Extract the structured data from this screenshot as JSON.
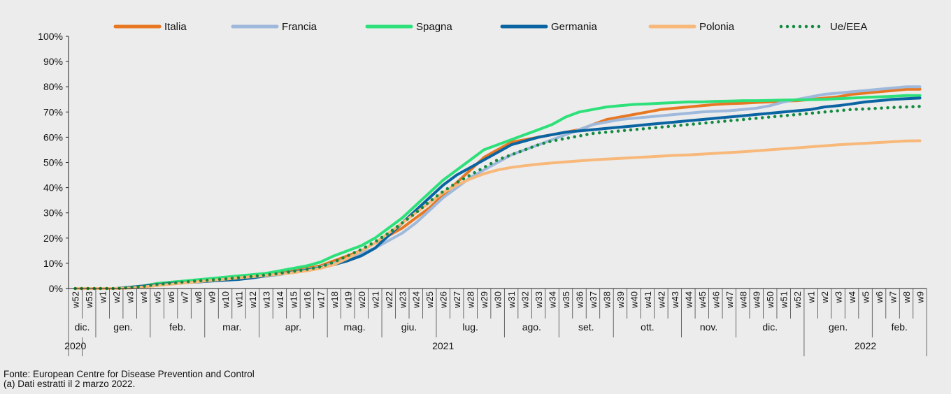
{
  "chart_data": {
    "type": "line",
    "ylim": [
      0,
      100
    ],
    "y_ticks": [
      "0%",
      "10%",
      "20%",
      "30%",
      "40%",
      "50%",
      "60%",
      "70%",
      "80%",
      "90%",
      "100%"
    ],
    "grid": false,
    "legend_position": "top",
    "x_labels": [
      "w52",
      "w53",
      "w1",
      "w2",
      "w3",
      "w4",
      "w5",
      "w6",
      "w7",
      "w8",
      "w9",
      "w10",
      "w11",
      "w12",
      "w13",
      "w14",
      "w15",
      "w16",
      "w17",
      "w18",
      "w19",
      "w20",
      "w21",
      "w22",
      "w23",
      "w24",
      "w25",
      "w26",
      "w27",
      "w28",
      "w29",
      "w30",
      "w31",
      "w32",
      "w33",
      "w34",
      "w35",
      "w36",
      "w37",
      "w38",
      "w39",
      "w40",
      "w41",
      "w42",
      "w43",
      "w44",
      "w45",
      "w46",
      "w47",
      "w48",
      "w49",
      "w50",
      "w51",
      "w52",
      "w1",
      "w2",
      "w3",
      "w4",
      "w5",
      "w6",
      "w7",
      "w8",
      "w9"
    ],
    "months": [
      {
        "label": "dic.",
        "start": 0,
        "end": 1
      },
      {
        "label": "gen.",
        "start": 2,
        "end": 5
      },
      {
        "label": "feb.",
        "start": 6,
        "end": 9
      },
      {
        "label": "mar.",
        "start": 10,
        "end": 13
      },
      {
        "label": "apr.",
        "start": 14,
        "end": 18
      },
      {
        "label": "mag.",
        "start": 19,
        "end": 22
      },
      {
        "label": "giu.",
        "start": 23,
        "end": 26
      },
      {
        "label": "lug.",
        "start": 27,
        "end": 31
      },
      {
        "label": "ago.",
        "start": 32,
        "end": 35
      },
      {
        "label": "set.",
        "start": 36,
        "end": 39
      },
      {
        "label": "ott.",
        "start": 40,
        "end": 44
      },
      {
        "label": "nov.",
        "start": 45,
        "end": 48
      },
      {
        "label": "dic.",
        "start": 49,
        "end": 53
      },
      {
        "label": "gen.",
        "start": 54,
        "end": 58
      },
      {
        "label": "feb.",
        "start": 59,
        "end": 62
      }
    ],
    "years": [
      {
        "label": "2020",
        "start": 0,
        "end": 0
      },
      {
        "label": "2021",
        "start": 1,
        "end": 53
      },
      {
        "label": "2022",
        "start": 54,
        "end": 62
      }
    ],
    "series": [
      {
        "name": "Italia",
        "color": "#e87722",
        "style": "solid",
        "values": [
          0,
          0,
          0,
          0,
          0.5,
          1,
          2,
          2.5,
          2.8,
          3.2,
          3.5,
          4,
          4.5,
          5,
          5.5,
          6,
          7,
          8,
          9,
          11,
          13,
          15,
          18,
          21,
          24,
          28,
          32,
          37,
          42,
          47,
          52,
          55,
          58,
          59,
          60,
          61,
          62,
          63,
          65,
          67,
          68,
          69,
          70,
          71,
          71.5,
          72,
          72.5,
          73,
          73.3,
          73.5,
          73.8,
          74,
          74.3,
          74.5,
          75,
          75.5,
          76,
          77,
          77.5,
          78,
          78.5,
          79,
          79
        ]
      },
      {
        "name": "Francia",
        "color": "#9eb9dc",
        "style": "solid",
        "values": [
          0,
          0,
          0,
          0,
          0.3,
          0.8,
          1.5,
          2,
          2.5,
          2.8,
          3.2,
          3.6,
          4,
          4.5,
          5,
          5.5,
          6.5,
          7.5,
          8.5,
          10,
          12,
          14,
          16,
          19,
          22,
          26,
          31,
          36,
          40,
          44,
          47,
          50,
          53,
          55,
          57,
          59,
          61,
          63,
          65,
          66,
          67,
          67.5,
          68,
          68.5,
          69,
          69.5,
          70,
          70.3,
          70.5,
          71,
          71.5,
          72.5,
          74,
          75,
          76,
          77,
          77.5,
          78,
          78.5,
          79,
          79.5,
          80,
          80
        ]
      },
      {
        "name": "Spagna",
        "color": "#2ee07a",
        "style": "solid",
        "values": [
          0,
          0,
          0,
          0,
          0.5,
          1,
          2,
          2.5,
          3,
          3.5,
          4,
          4.5,
          5,
          5.5,
          6,
          7,
          8,
          9,
          10.5,
          13,
          15,
          17,
          20,
          24,
          28,
          33,
          38,
          43,
          47,
          51,
          55,
          57,
          59,
          61,
          63,
          65,
          68,
          70,
          71,
          72,
          72.5,
          73,
          73.2,
          73.5,
          73.7,
          74,
          74,
          74.2,
          74.3,
          74.5,
          74.5,
          74.6,
          74.7,
          74.8,
          74.9,
          75,
          75.3,
          75.5,
          75.8,
          76,
          76.2,
          76.5,
          76.5
        ]
      },
      {
        "name": "Germania",
        "color": "#0b64a2",
        "style": "solid",
        "values": [
          0,
          0,
          0,
          0,
          0.5,
          1,
          1.5,
          2,
          2.3,
          2.6,
          3,
          3.3,
          3.6,
          4.2,
          5,
          5.8,
          6.5,
          7.3,
          8.2,
          9.5,
          11,
          13,
          16,
          21,
          26,
          31,
          36,
          41,
          45,
          48,
          51,
          54,
          57,
          58.5,
          60,
          61,
          62,
          62.5,
          63,
          63.5,
          64,
          64.5,
          65,
          65.5,
          66,
          66.5,
          67,
          67.5,
          68,
          68.5,
          69,
          69.5,
          70,
          70.5,
          71,
          72,
          72.5,
          73.2,
          74,
          74.5,
          75,
          75.3,
          75.5
        ]
      },
      {
        "name": "Polonia",
        "color": "#f7b87a",
        "style": "solid",
        "values": [
          0,
          0,
          0,
          0,
          0.2,
          0.6,
          1.2,
          1.7,
          2.2,
          2.7,
          3.2,
          3.7,
          4.2,
          4.7,
          5.2,
          5.7,
          6.3,
          7,
          8,
          9.5,
          12,
          15,
          18,
          22,
          26,
          30,
          34,
          38,
          41,
          43.5,
          45.5,
          47,
          48,
          48.7,
          49.3,
          49.8,
          50.2,
          50.6,
          51,
          51.3,
          51.6,
          51.9,
          52.2,
          52.5,
          52.8,
          53,
          53.3,
          53.6,
          53.9,
          54.2,
          54.6,
          55,
          55.4,
          55.8,
          56.2,
          56.6,
          57,
          57.3,
          57.6,
          57.9,
          58.2,
          58.5,
          58.6
        ]
      },
      {
        "name": "Ue/EEA",
        "color": "#138a3f",
        "style": "dotted",
        "values": [
          0,
          0,
          0,
          0,
          0.4,
          0.9,
          1.6,
          2.1,
          2.6,
          3,
          3.4,
          3.8,
          4.3,
          4.8,
          5.4,
          6,
          6.8,
          7.6,
          8.6,
          10.5,
          13,
          15.5,
          18.5,
          22,
          26,
          30,
          34.5,
          38.5,
          42,
          45,
          48,
          51,
          53,
          55,
          57,
          58.5,
          59.5,
          60.5,
          61.5,
          62,
          62.5,
          63,
          63.5,
          64,
          64.5,
          65,
          65.5,
          66,
          66.5,
          67,
          67.5,
          68,
          68.5,
          69,
          69.5,
          70,
          70.5,
          71,
          71.2,
          71.5,
          71.8,
          72,
          72.2
        ]
      }
    ]
  },
  "footnote": {
    "source": "Fonte: European Centre for Disease Prevention and Control",
    "note": "(a) Dati estratti il 2 marzo 2022."
  }
}
